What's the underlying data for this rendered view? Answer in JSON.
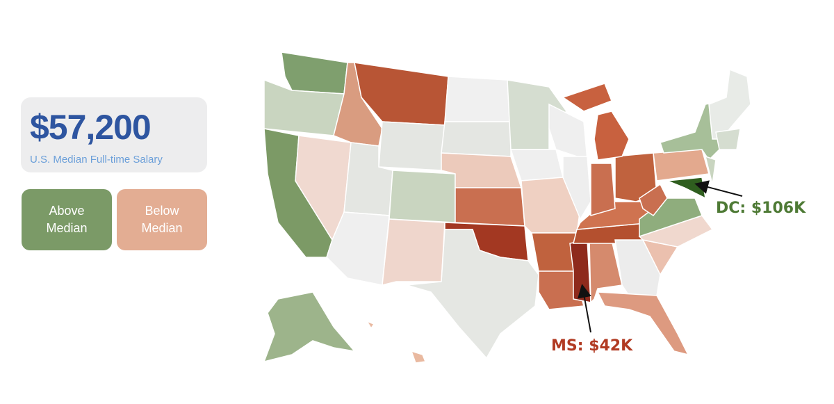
{
  "summary": {
    "value": "$57,200",
    "label": "U.S. Median Full-time Salary"
  },
  "legend": {
    "above": "Above Median",
    "below": "Below Median"
  },
  "annotations": [
    {
      "label": "DC: $106K"
    },
    {
      "label": "MS: $42K"
    }
  ]
}
